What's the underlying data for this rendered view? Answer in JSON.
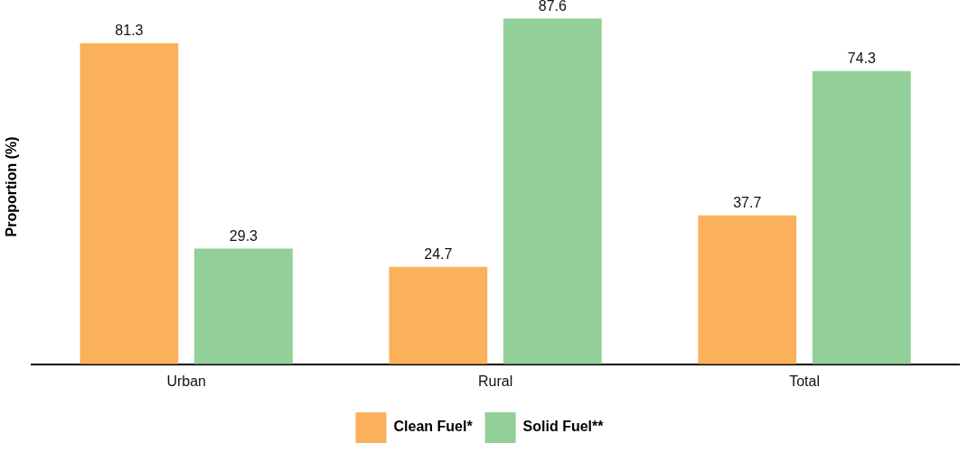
{
  "chart_data": {
    "type": "bar",
    "ylabel": "Proportion (%)",
    "categories": [
      "Urban",
      "Rural",
      "Total"
    ],
    "series": [
      {
        "name": "Clean Fuel*",
        "color": "#fbb15a",
        "values": [
          81.3,
          24.7,
          37.7
        ]
      },
      {
        "name": "Solid Fuel**",
        "color": "#93cf98",
        "values": [
          29.3,
          87.6,
          74.3
        ]
      }
    ],
    "data_labels": true,
    "legend": "bottom",
    "grid": false,
    "tick_labels": "x"
  }
}
